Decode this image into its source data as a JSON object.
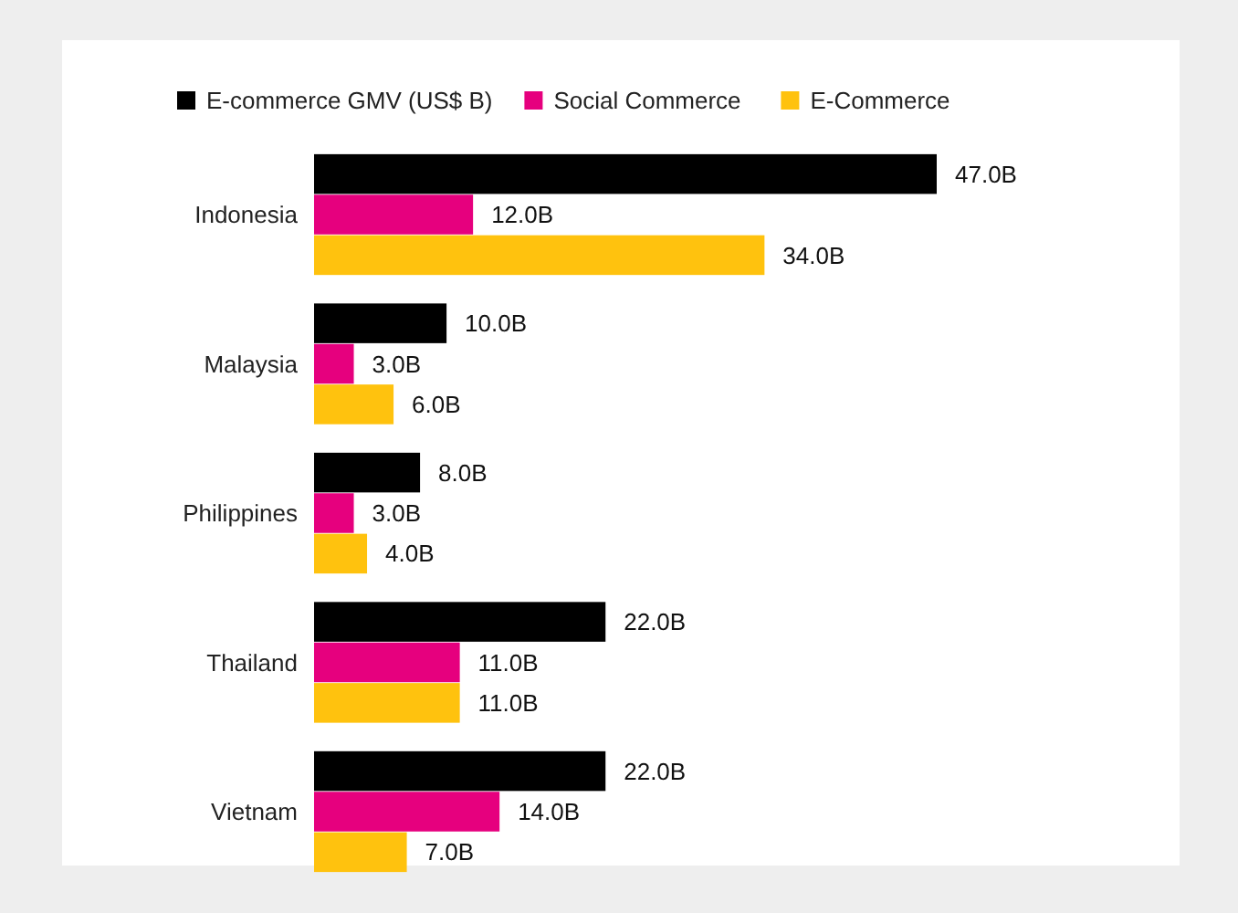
{
  "chart_data": {
    "type": "bar",
    "orientation": "horizontal",
    "categories": [
      "Indonesia",
      "Malaysia",
      "Philippines",
      "Thailand",
      "Vietnam"
    ],
    "legend": "top",
    "series": [
      {
        "name": "E-commerce GMV (US$ B)",
        "color": "#000000",
        "values": [
          47,
          10,
          8,
          22,
          22
        ],
        "value_labels": [
          "47.0B",
          "10.0B",
          "8.0B",
          "22.0B",
          "22.0B"
        ]
      },
      {
        "name": "Social Commerce",
        "color": "#e6007e",
        "values": [
          12,
          3,
          3,
          11,
          14
        ],
        "value_labels": [
          "12.0B",
          "3.0B",
          "3.0B",
          "11.0B",
          "14.0B"
        ]
      },
      {
        "name": "E-Commerce",
        "color": "#ffc20e",
        "values": [
          34,
          6,
          4,
          11,
          7
        ],
        "value_labels": [
          "34.0B",
          "6.0B",
          "4.0B",
          "11.0B",
          "7.0B"
        ]
      }
    ]
  }
}
